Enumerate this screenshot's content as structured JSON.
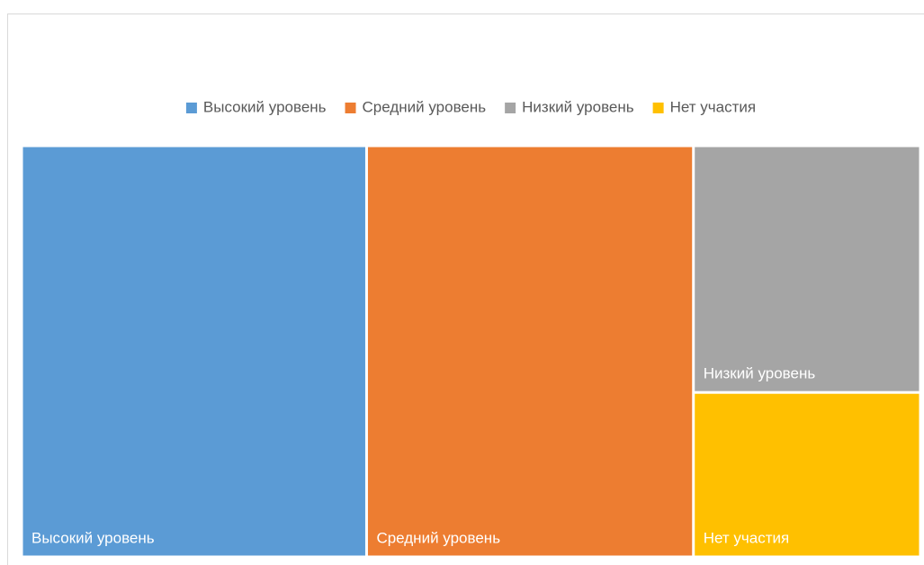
{
  "chart_data": {
    "type": "treemap",
    "categories": [
      "Высокий уровень",
      "Средний уровень",
      "Низкий уровень",
      "Нет участия"
    ],
    "values": [
      38,
      36,
      15,
      10
    ],
    "colors": [
      "#5b9bd5",
      "#ed7d31",
      "#a5a5a5",
      "#ffc000"
    ],
    "legend": "top"
  }
}
